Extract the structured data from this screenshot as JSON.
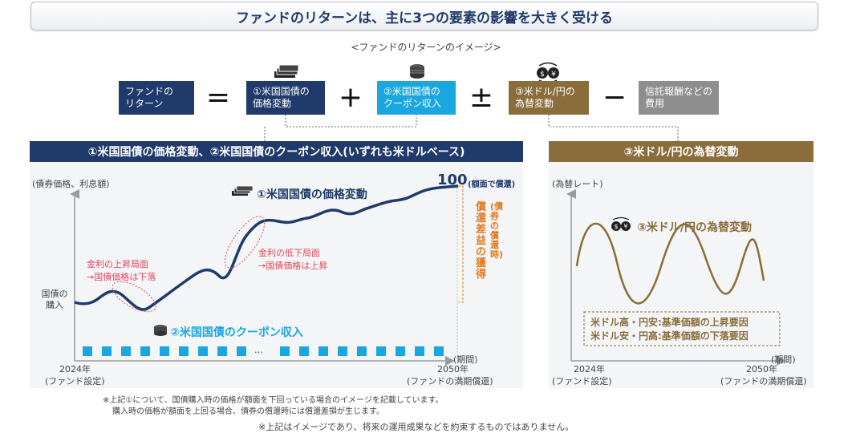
{
  "header": {
    "title": "ファンドのリターンは、主に3つの要素の影響を大きく受ける"
  },
  "subtitle": "<ファンドのリターンのイメージ>",
  "equation": {
    "fund_return": "ファンドの\nリターン",
    "price_change": "①米国国債の\n価格変動",
    "coupon": "②米国国債の\nクーポン収入",
    "fx": "③米ドル/円の\n為替変動",
    "fees": "信託報酬などの\n費用",
    "op_equals": "=",
    "op_plus": "+",
    "op_plusminus": "±",
    "op_minus": "−"
  },
  "left_panel": {
    "title": "①米国国債の価格変動、②米国国債のクーポン収入(いずれも米ドルベース)",
    "y_axis_label": "(債券価格、利息額)",
    "x_axis_label": "(期間)",
    "start_label": "2024年",
    "start_sub": "(ファンド設定)",
    "end_label": "2050年",
    "end_sub": "(ファンドの満期償還)",
    "purchase_label": "国債の\n購入",
    "price_series_label": "①米国国債の価格変動",
    "face_value": "100",
    "face_value_note": "(額面で償還)",
    "redemption_gain": "償還差益の獲得",
    "redemption_note": "(債券の償還時)",
    "rate_up": "金利の上昇局面\n→国債価格は下落",
    "rate_down": "金利の低下局面\n→国債価格は上昇",
    "coupon_label": "②米国国債のクーポン収入",
    "dots": "…"
  },
  "right_panel": {
    "title": "③米ドル/円の為替変動",
    "y_axis_label": "(為替レート)",
    "x_axis_label": "(期間)",
    "start_label": "2024年",
    "start_sub": "(ファンド設定)",
    "end_label": "2050年",
    "end_sub": "(ファンドの満期償還)",
    "series_label": "③米ドル/円の為替変動",
    "note_line1": "米ドル高・円安:基準価額の上昇要因",
    "note_line2": "米ドル安・円高:基準価額の下落要因"
  },
  "footnotes": {
    "note1_line1": "※上記①について、国債購入時の価格が額面を下回っている場合のイメージを記載しています。",
    "note1_line2": "購入時の価格が額面を上回る場合、債券の償還時には償還差損が生じます。",
    "note2": "※上記はイメージであり、将来の運用成果などを約束するものではありません。"
  },
  "colors": {
    "navy": "#1f3a6b",
    "blue": "#1aa7e0",
    "brown": "#8a6d3b",
    "gray": "#8e8e8e",
    "orange": "#e07a1f",
    "red_note": "#e0475a"
  }
}
